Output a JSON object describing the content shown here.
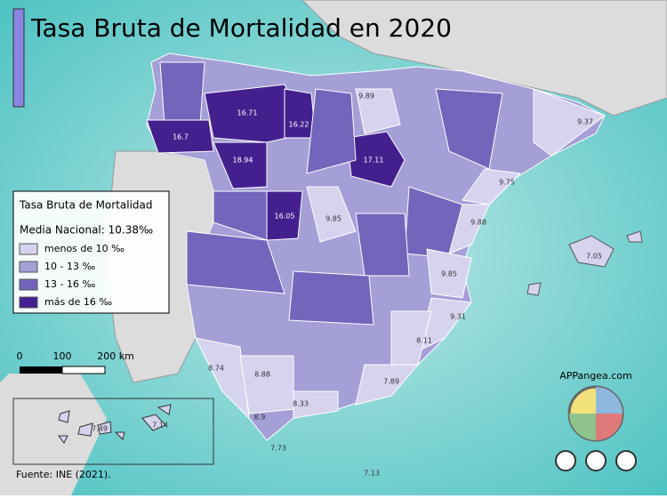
{
  "title": "Tasa Bruta de Mortalidad en 2020",
  "legend": {
    "title": "Tasa Bruta de Mortalidad",
    "subtitle": "Media Nacional: 10.38‰",
    "items": [
      {
        "label": "menos de 10 ‰",
        "color": "#d6d3ee"
      },
      {
        "label": "10 - 13 ‰",
        "color": "#a49fd6"
      },
      {
        "label": "13 - 16 ‰",
        "color": "#7365bb"
      },
      {
        "label": "más de 16 ‰",
        "color": "#44208f"
      }
    ]
  },
  "scale": {
    "labels": [
      "0",
      "100",
      "200 km"
    ]
  },
  "province_labels": [
    "16.71",
    "16.22",
    "16.7",
    "18.94",
    "17.11",
    "16.05",
    "9.85",
    "9.89",
    "9.37",
    "9.75",
    "9.88",
    "9.85",
    "7.05",
    "9.31",
    "8.11",
    "8.74",
    "8.88",
    "7.89",
    "8.33",
    "8.9",
    "7.73",
    "7.13",
    "7.49",
    "7.14"
  ],
  "brand": "APPangea.com",
  "source": "Fuente: INE (2021)."
}
